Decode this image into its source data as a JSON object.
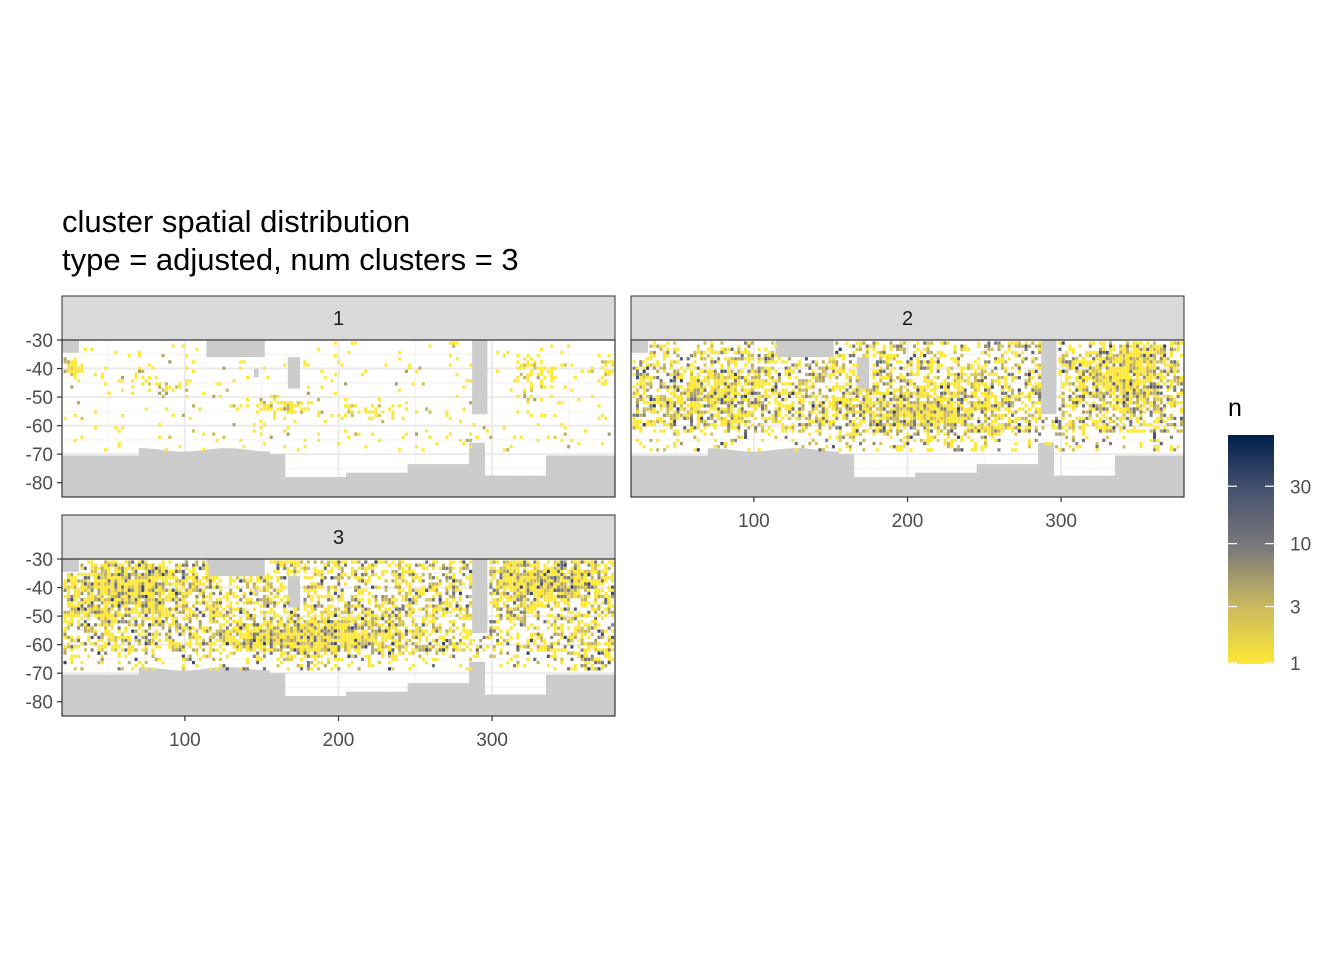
{
  "chart_data": {
    "type": "heatmap",
    "title": "cluster spatial distribution",
    "subtitle": "type = adjusted, num clusters = 3",
    "xlabel": "",
    "ylabel": "",
    "xlim": [
      20,
      380
    ],
    "ylim": [
      -85,
      -30
    ],
    "x_ticks": [
      "100",
      "200",
      "300"
    ],
    "y_ticks": [
      "-30",
      "-40",
      "-50",
      "-60",
      "-70",
      "-80"
    ],
    "grid": true,
    "land_color": "#cccccc",
    "colorscale": {
      "name": "cividis",
      "transform": "log10",
      "low_color": "#fde737",
      "high_color": "#00204d",
      "range": [
        1,
        80
      ]
    },
    "legend": {
      "title": "n",
      "position": "right",
      "ticks": [
        "30",
        "10",
        "3",
        "1"
      ]
    },
    "panels": [
      {
        "label": "1",
        "density": 0.05,
        "hotspots": [
          {
            "x": 28,
            "y": -40,
            "w": 6,
            "h": 3,
            "d": 0.7
          },
          {
            "x": 78,
            "y": -45,
            "w": 22,
            "h": 2.5,
            "d": 0.45
          },
          {
            "x": 160,
            "y": -53,
            "w": 18,
            "h": 3,
            "d": 0.55
          },
          {
            "x": 218,
            "y": -54,
            "w": 22,
            "h": 2.5,
            "d": 0.5
          },
          {
            "x": 327,
            "y": -42,
            "w": 15,
            "h": 6,
            "d": 0.45
          },
          {
            "x": 373,
            "y": -40,
            "w": 6,
            "h": 4,
            "d": 0.55
          }
        ]
      },
      {
        "label": "2",
        "density": 0.42,
        "hotspots": [
          {
            "x": 70,
            "y": -50,
            "w": 40,
            "h": 8,
            "d": 0.5
          },
          {
            "x": 210,
            "y": -55,
            "w": 60,
            "h": 9,
            "d": 0.55
          },
          {
            "x": 340,
            "y": -45,
            "w": 30,
            "h": 10,
            "d": 0.55
          },
          {
            "x": 350,
            "y": -35,
            "w": 20,
            "h": 4,
            "d": 0.5
          }
        ]
      },
      {
        "label": "3",
        "density": 0.5,
        "hotspots": [
          {
            "x": 60,
            "y": -40,
            "w": 40,
            "h": 10,
            "d": 0.55
          },
          {
            "x": 180,
            "y": -57,
            "w": 60,
            "h": 7,
            "d": 0.6
          },
          {
            "x": 330,
            "y": -38,
            "w": 35,
            "h": 8,
            "d": 0.6
          },
          {
            "x": 365,
            "y": -65,
            "w": 15,
            "h": 4,
            "d": 0.5
          }
        ]
      }
    ]
  }
}
